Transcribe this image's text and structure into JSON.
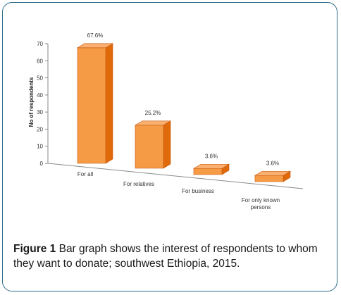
{
  "chart_data": {
    "type": "bar",
    "categories": [
      "For all",
      "For relatives",
      "For business",
      "For only known persons"
    ],
    "category_lines": [
      [
        "For all"
      ],
      [
        "For relatives"
      ],
      [
        "For business"
      ],
      [
        "For only known",
        "persons"
      ]
    ],
    "values": [
      67.6,
      25.2,
      3.6,
      3.6
    ],
    "data_labels": [
      "67.6%",
      "25.2%",
      "3.6%",
      "3.6%"
    ],
    "ylabel": "No of respondents",
    "xlabel": "",
    "ylim": [
      0,
      70
    ],
    "yticks": [
      0,
      10,
      20,
      30,
      40,
      50,
      60,
      70
    ],
    "grid": false,
    "style": "3d",
    "colors": {
      "front": "#F59A45",
      "side": "#E06A0A",
      "top": "#F9B071",
      "outline": "#C8560B"
    }
  },
  "caption": {
    "label": "Figure 1",
    "text": " Bar graph shows the interest of respondents to whom they want to donate; southwest Ethiopia, 2015."
  }
}
